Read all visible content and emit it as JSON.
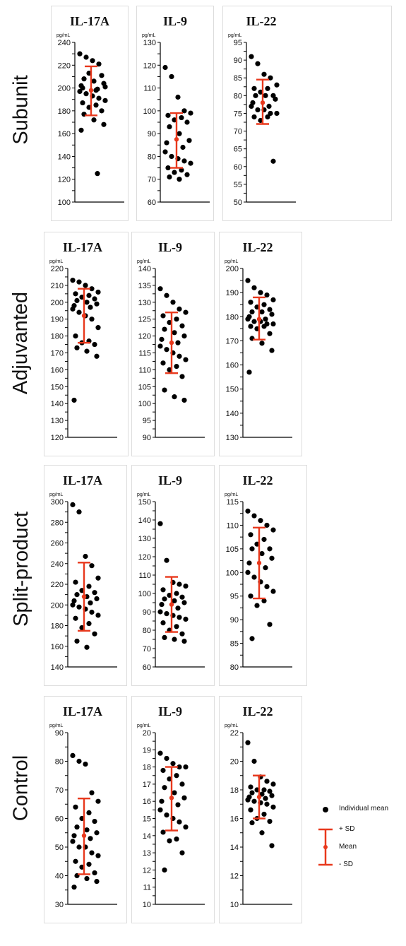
{
  "units": "pg/mL",
  "legend": {
    "individual": "Individual mean",
    "plus_sd": "+ SD",
    "mean": "Mean",
    "minus_sd": "- SD"
  },
  "colors": {
    "points": "#000000",
    "mean_sd": "#e8381c",
    "panel_border": "#dddddd"
  },
  "groups": [
    {
      "label": "Subunit"
    },
    {
      "label": "Adjuvanted"
    },
    {
      "label": "Split-product"
    },
    {
      "label": "Control"
    }
  ],
  "chart_data": [
    {
      "type": "scatter",
      "group": "Subunit",
      "title": "IL-17A",
      "ylim": [
        100,
        240
      ],
      "yticks": [
        100,
        120,
        140,
        160,
        180,
        200,
        220,
        240
      ],
      "mean": 198,
      "plus_sd": 219,
      "minus_sd": 176,
      "values": [
        230,
        227,
        224,
        221,
        201,
        200,
        198,
        213,
        211,
        208,
        206,
        204,
        202,
        199,
        197,
        195,
        193,
        191,
        189,
        187,
        185,
        183,
        180,
        177,
        172,
        168,
        163,
        125
      ]
    },
    {
      "type": "scatter",
      "group": "Subunit",
      "title": "IL-9",
      "ylim": [
        60,
        130
      ],
      "yticks": [
        60,
        70,
        80,
        90,
        100,
        110,
        120,
        130
      ],
      "mean": 87.5,
      "plus_sd": 99,
      "minus_sd": 75,
      "values": [
        119,
        115,
        106,
        100,
        99,
        98,
        97,
        96,
        95,
        93,
        90,
        87,
        86,
        84,
        82,
        80,
        79,
        78,
        77,
        75,
        74,
        73,
        72,
        71,
        70
      ]
    },
    {
      "type": "scatter",
      "group": "Subunit",
      "title": "IL-22",
      "ylim": [
        50,
        95
      ],
      "yticks": [
        50,
        55,
        60,
        65,
        70,
        75,
        80,
        85,
        90,
        95
      ],
      "mean": 78,
      "plus_sd": 84.5,
      "minus_sd": 72,
      "values": [
        91,
        89,
        86,
        85,
        83,
        82,
        82,
        81,
        80,
        80,
        80,
        79,
        78,
        77,
        77,
        76,
        76,
        75,
        75,
        74,
        74,
        73,
        61.5
      ]
    },
    {
      "type": "scatter",
      "group": "Adjuvanted",
      "title": "IL-17A",
      "ylim": [
        120,
        220
      ],
      "yticks": [
        120,
        130,
        140,
        150,
        160,
        170,
        180,
        190,
        200,
        210,
        220
      ],
      "mean": 192,
      "plus_sd": 208,
      "minus_sd": 176,
      "values": [
        213,
        212,
        210,
        208,
        206,
        205,
        204,
        203,
        202,
        201,
        200,
        199,
        198,
        197,
        196,
        194,
        192,
        190,
        185,
        180,
        177,
        176,
        175,
        173,
        171,
        168,
        142
      ]
    },
    {
      "type": "scatter",
      "group": "Adjuvanted",
      "title": "IL-9",
      "ylim": [
        90,
        140
      ],
      "yticks": [
        90,
        95,
        100,
        105,
        110,
        115,
        120,
        125,
        130,
        135,
        140
      ],
      "mean": 118,
      "plus_sd": 127,
      "minus_sd": 109,
      "values": [
        134,
        132,
        130,
        128,
        127,
        126,
        125,
        124,
        123,
        122,
        121,
        120,
        119,
        118,
        117,
        116,
        115,
        114,
        113,
        112,
        111,
        110,
        108,
        104,
        102,
        101
      ]
    },
    {
      "type": "scatter",
      "group": "Adjuvanted",
      "title": "IL-22",
      "ylim": [
        130,
        200
      ],
      "yticks": [
        130,
        140,
        150,
        160,
        170,
        180,
        190,
        200
      ],
      "mean": 179,
      "plus_sd": 188,
      "minus_sd": 170.5,
      "values": [
        195,
        192,
        190,
        189,
        187,
        186,
        185,
        184,
        183,
        182,
        182,
        181,
        180,
        179,
        179,
        178,
        178,
        177,
        177,
        176,
        176,
        175,
        173,
        171,
        169,
        166,
        157
      ]
    },
    {
      "type": "scatter",
      "group": "Split-product",
      "title": "IL-17A",
      "ylim": [
        140,
        300
      ],
      "yticks": [
        140,
        160,
        180,
        200,
        220,
        240,
        260,
        280,
        300
      ],
      "mean": 208,
      "plus_sd": 241,
      "minus_sd": 175,
      "values": [
        297,
        290,
        247,
        238,
        226,
        222,
        218,
        214,
        212,
        210,
        208,
        206,
        204,
        202,
        200,
        198,
        196,
        193,
        190,
        187,
        182,
        178,
        172,
        165,
        159
      ]
    },
    {
      "type": "scatter",
      "group": "Split-product",
      "title": "IL-9",
      "ylim": [
        60,
        150
      ],
      "yticks": [
        60,
        70,
        80,
        90,
        100,
        110,
        120,
        130,
        140,
        150
      ],
      "mean": 94,
      "plus_sd": 109,
      "minus_sd": 79,
      "values": [
        138,
        118,
        106,
        105,
        104,
        102,
        100,
        99,
        98,
        97,
        96,
        95,
        94,
        92,
        90,
        89,
        88,
        87,
        86,
        84,
        82,
        80,
        78,
        76,
        75,
        74
      ]
    },
    {
      "type": "scatter",
      "group": "Split-product",
      "title": "IL-22",
      "ylim": [
        80,
        115
      ],
      "yticks": [
        80,
        85,
        90,
        95,
        100,
        105,
        110,
        115
      ],
      "mean": 102,
      "plus_sd": 109.5,
      "minus_sd": 94.5,
      "values": [
        113,
        112,
        111,
        110,
        109,
        108,
        107,
        106,
        105,
        105,
        104,
        103,
        102,
        101,
        100,
        99,
        98,
        97,
        96,
        95,
        94,
        93,
        89,
        86
      ]
    },
    {
      "type": "scatter",
      "group": "Control",
      "title": "IL-17A",
      "ylim": [
        30,
        90
      ],
      "yticks": [
        30,
        40,
        50,
        60,
        70,
        80,
        90
      ],
      "mean": 54,
      "plus_sd": 67,
      "minus_sd": 40.5,
      "values": [
        82,
        80,
        79,
        69,
        66,
        64,
        62,
        60,
        59,
        57,
        56,
        55,
        54,
        53,
        52,
        50,
        50,
        48,
        47,
        45,
        44,
        43,
        41,
        40,
        39,
        38,
        36
      ]
    },
    {
      "type": "scatter",
      "group": "Control",
      "title": "IL-9",
      "ylim": [
        10,
        20
      ],
      "yticks": [
        10,
        11,
        12,
        13,
        14,
        15,
        16,
        17,
        18,
        19,
        20
      ],
      "mean": 16.2,
      "plus_sd": 18,
      "minus_sd": 14.3,
      "values": [
        18.8,
        18.5,
        18.2,
        18,
        18,
        17.8,
        17.5,
        17.3,
        17,
        16.8,
        16.5,
        16.2,
        16,
        15.8,
        15.5,
        15.2,
        15,
        14.8,
        14.5,
        14.2,
        13.8,
        13.7,
        13,
        12
      ]
    },
    {
      "type": "scatter",
      "group": "Control",
      "title": "IL-22",
      "ylim": [
        10,
        22
      ],
      "yticks": [
        10,
        12,
        14,
        16,
        18,
        20,
        22
      ],
      "mean": 17.5,
      "plus_sd": 19,
      "minus_sd": 16,
      "values": [
        21.3,
        20,
        18.9,
        18.6,
        18.4,
        18.2,
        18,
        18,
        17.9,
        17.8,
        17.7,
        17.6,
        17.5,
        17.4,
        17.3,
        17.2,
        17.1,
        17,
        16.8,
        16.6,
        16.3,
        16,
        15.8,
        15.7,
        15,
        14.1
      ]
    }
  ]
}
